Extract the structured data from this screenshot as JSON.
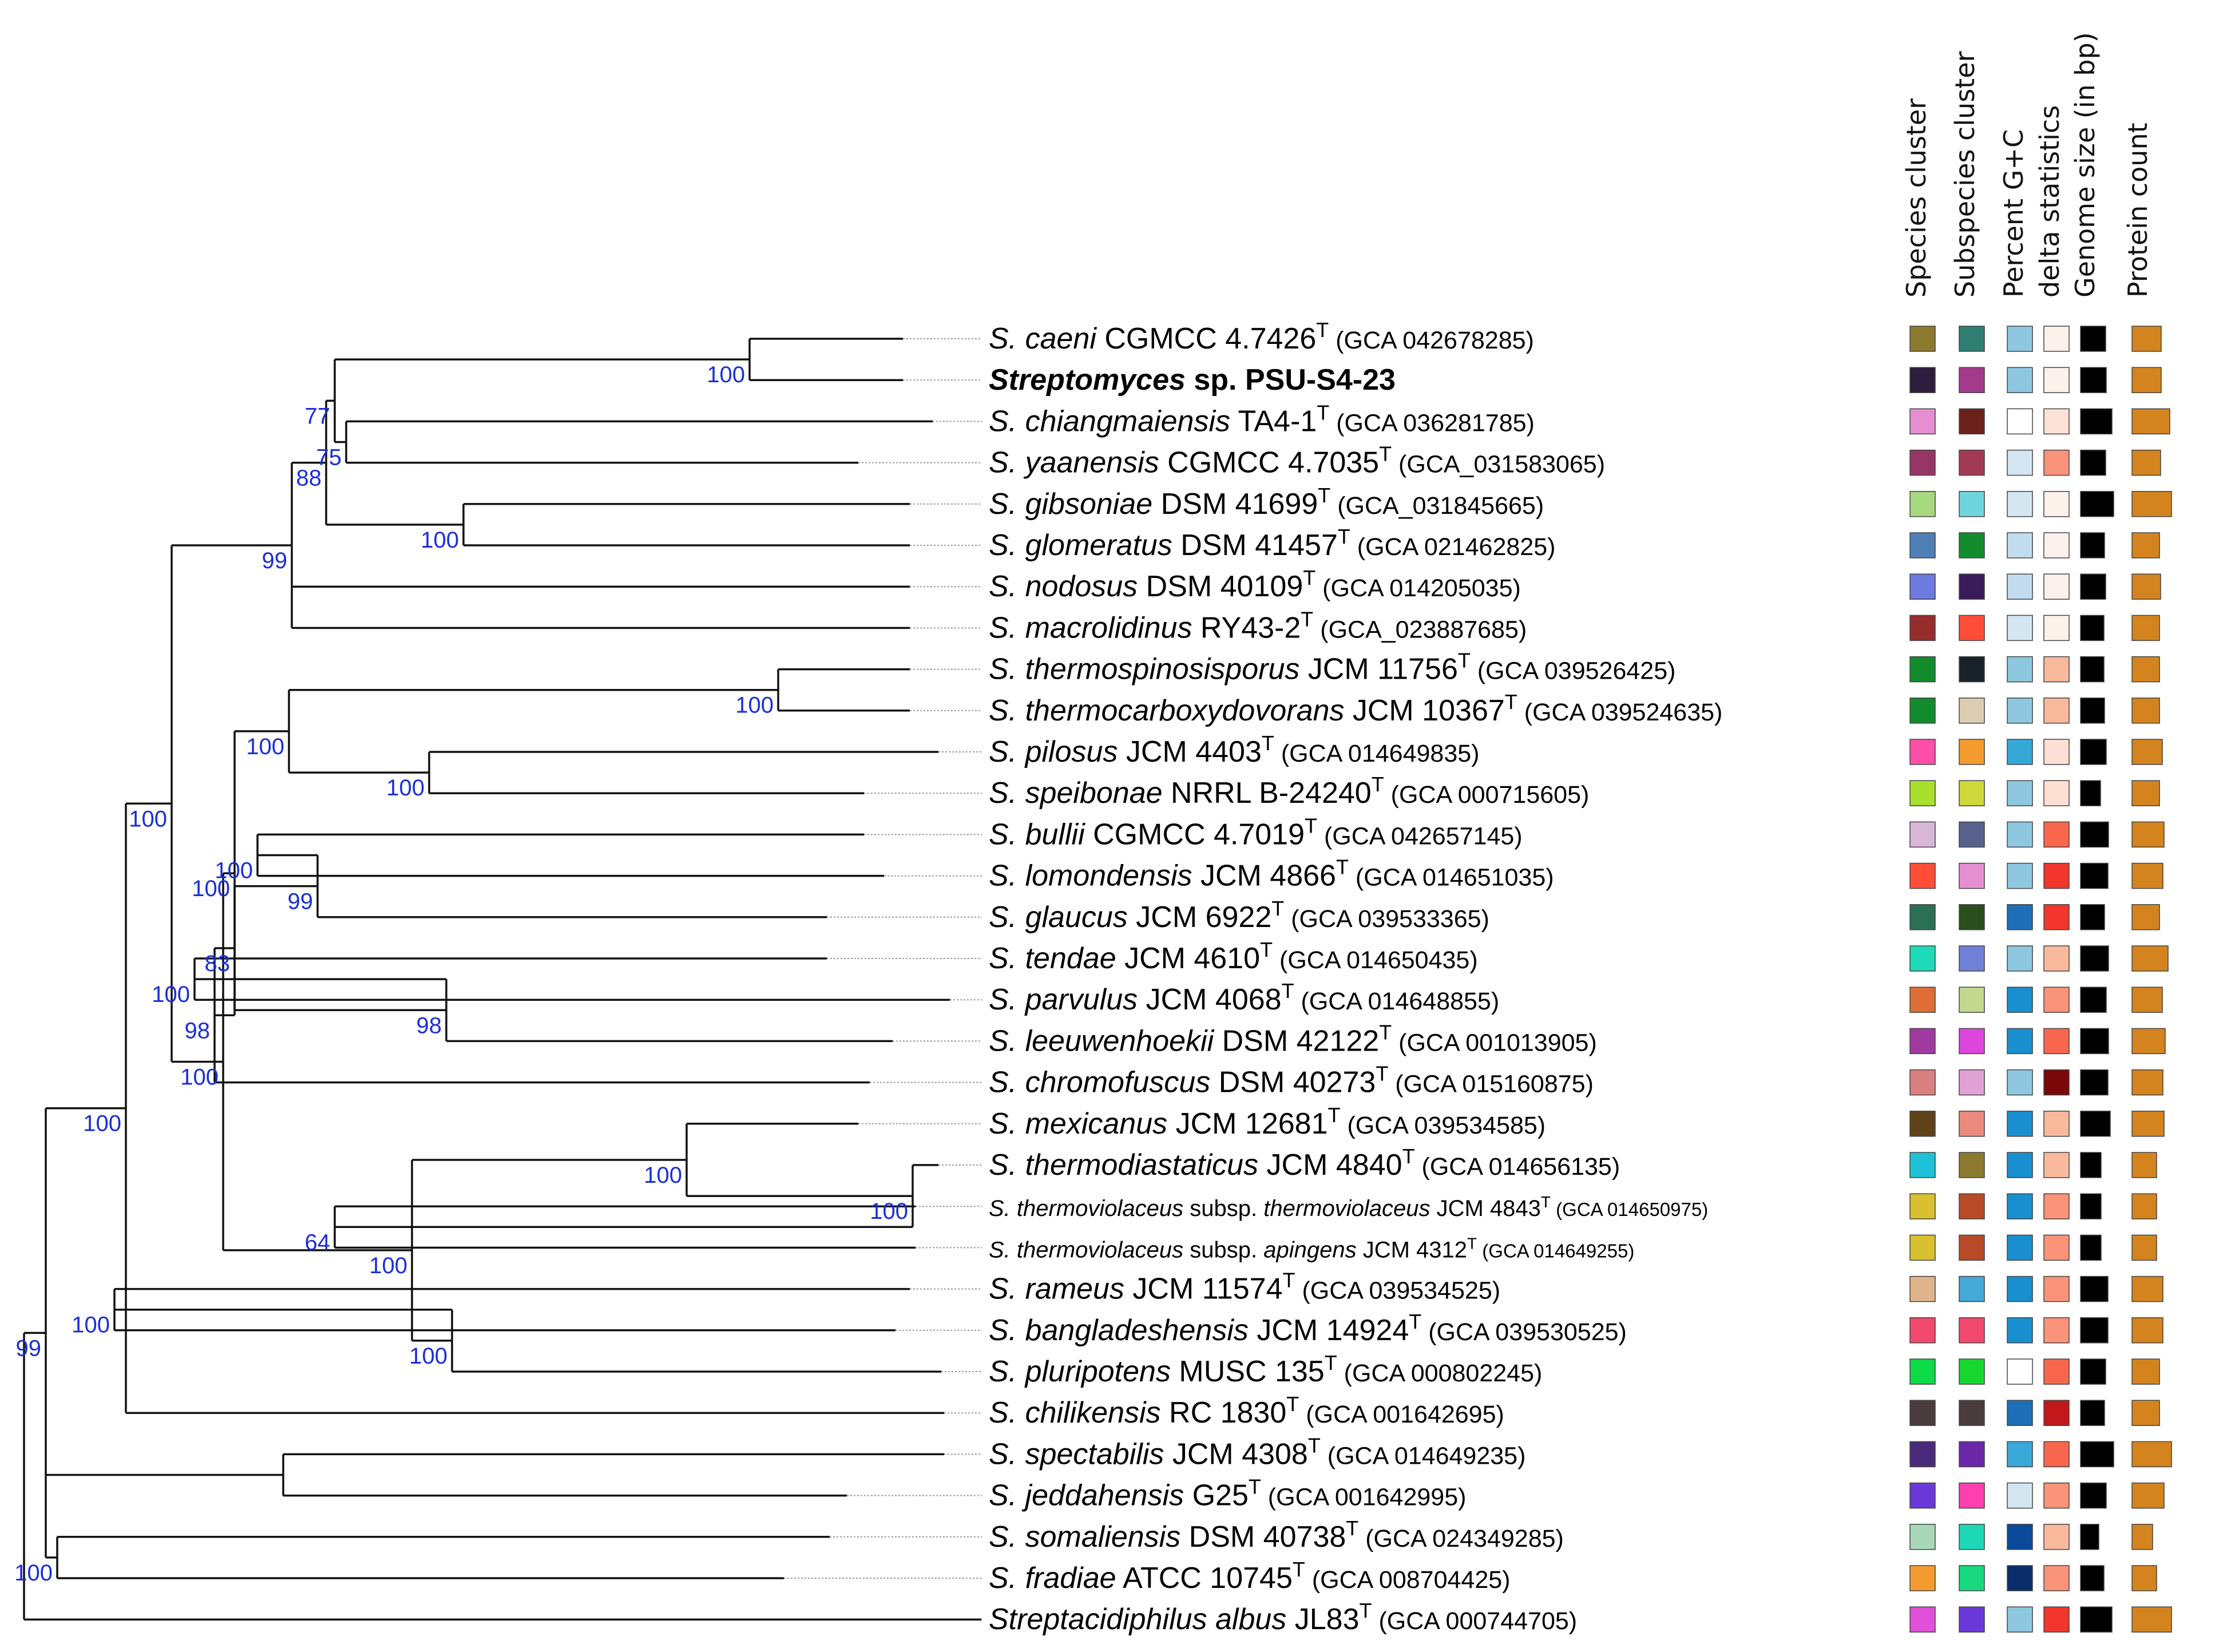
{
  "columns": [
    "Species cluster",
    "Subspecies cluster",
    "Percent G+C",
    "delta statistics",
    "Genome size (in bp)",
    "Protein count"
  ],
  "taxa": [
    {
      "genus": "S.",
      "species": "caeni",
      "strain": "CGMCC 4.7426",
      "type": "T",
      "acc": "(GCA 042678285)",
      "colors": [
        "#8b7a2e",
        "#2e7f72",
        "#8ec8e0",
        "#fdf1ec",
        "#000000",
        "#d4841f"
      ],
      "genome": 0.75,
      "proteins": 0.78
    },
    {
      "genus": "Streptomyces",
      "species": "sp. PSU-S4-23",
      "strain": "",
      "type": "",
      "acc": "",
      "bold": true,
      "colors": [
        "#2e1d3d",
        "#a33a8c",
        "#8ec8e0",
        "#fdf1ec",
        "#000000",
        "#d4841f"
      ],
      "genome": 0.78,
      "proteins": 0.78
    },
    {
      "genus": "S.",
      "species": "chiangmaiensis",
      "strain": "TA4-1",
      "type": "T",
      "acc": "(GCA 036281785)",
      "colors": [
        "#e58fd2",
        "#6b2119",
        "#ffffff",
        "#fde2d7",
        "#000000",
        "#d4841f"
      ],
      "genome": 0.95,
      "proteins": 1.0
    },
    {
      "genus": "S.",
      "species": "yaanensis",
      "strain": "CGMCC 4.7035",
      "type": "T",
      "acc": "(GCA_031583065)",
      "colors": [
        "#963566",
        "#a33a55",
        "#d3e6f2",
        "#f99379",
        "#000000",
        "#d4841f"
      ],
      "genome": 0.75,
      "proteins": 0.75
    },
    {
      "genus": "S.",
      "species": "gibsoniae",
      "strain": "DSM 41699",
      "type": "T",
      "acc": "(GCA_031845665)",
      "colors": [
        "#a8d97e",
        "#70d4dc",
        "#d3e6f2",
        "#fdf1ec",
        "#000000",
        "#d4841f"
      ],
      "genome": 1.0,
      "proteins": 1.05
    },
    {
      "genus": "S.",
      "species": "glomeratus",
      "strain": "DSM 41457",
      "type": "T",
      "acc": "(GCA 021462825)",
      "colors": [
        "#4f7fb5",
        "#148c2e",
        "#c2dcef",
        "#fdf1ec",
        "#000000",
        "#d4841f"
      ],
      "genome": 0.72,
      "proteins": 0.72
    },
    {
      "genus": "S.",
      "species": "nodosus",
      "strain": "DSM 40109",
      "type": "T",
      "acc": "(GCA 014205035)",
      "colors": [
        "#6d7ae0",
        "#3a1a5a",
        "#c2dcef",
        "#fdf1ec",
        "#000000",
        "#d4841f"
      ],
      "genome": 0.75,
      "proteins": 0.75
    },
    {
      "genus": "S.",
      "species": "macrolidinus",
      "strain": "RY43-2",
      "type": "T",
      "acc": "(GCA_023887685)",
      "colors": [
        "#962c2c",
        "#ff4d38",
        "#d3e6f2",
        "#fdf1ec",
        "#000000",
        "#d4841f"
      ],
      "genome": 0.7,
      "proteins": 0.72
    },
    {
      "genus": "S.",
      "species": "thermospinosisporus",
      "strain": "JCM 11756",
      "type": "T",
      "acc": "(GCA 039526425)",
      "colors": [
        "#138c2e",
        "#19222b",
        "#8ec8e0",
        "#f9b99c",
        "#000000",
        "#d4841f"
      ],
      "genome": 0.7,
      "proteins": 0.72
    },
    {
      "genus": "S.",
      "species": "thermocarboxydovorans",
      "strain": "JCM 10367",
      "type": "T",
      "acc": "(GCA 039524635)",
      "colors": [
        "#138c2e",
        "#dccdb2",
        "#8ec8e0",
        "#f9b99c",
        "#000000",
        "#d4841f"
      ],
      "genome": 0.72,
      "proteins": 0.72
    },
    {
      "genus": "S.",
      "species": "pilosus",
      "strain": "JCM 4403",
      "type": "T",
      "acc": "(GCA 014649835)",
      "colors": [
        "#ff4fa8",
        "#f39b2e",
        "#35a8d8",
        "#fddfd3",
        "#000000",
        "#d4841f"
      ],
      "genome": 0.78,
      "proteins": 0.8
    },
    {
      "genus": "S.",
      "species": "speibonae",
      "strain": "NRRL B-24240",
      "type": "T",
      "acc": "(GCA 000715605)",
      "colors": [
        "#a9e02e",
        "#cfd83a",
        "#8ec8e0",
        "#fddfd3",
        "#000000",
        "#d4841f"
      ],
      "genome": 0.6,
      "proteins": 0.72
    },
    {
      "genus": "S.",
      "species": "bullii",
      "strain": "CGMCC 4.7019",
      "type": "T",
      "acc": "(GCA 042657145)",
      "colors": [
        "#d8b7d8",
        "#58608c",
        "#8ec8e0",
        "#f9664e",
        "#000000",
        "#d4841f"
      ],
      "genome": 0.85,
      "proteins": 0.85
    },
    {
      "genus": "S.",
      "species": "lomondensis",
      "strain": "JCM 4866",
      "type": "T",
      "acc": "(GCA 014651035)",
      "colors": [
        "#ff4d38",
        "#e58fd2",
        "#8ec8e0",
        "#f2362d",
        "#000000",
        "#d4841f"
      ],
      "genome": 0.82,
      "proteins": 0.82
    },
    {
      "genus": "S.",
      "species": "glaucus",
      "strain": "JCM 6922",
      "type": "T",
      "acc": "(GCA 039533365)",
      "colors": [
        "#2b6f55",
        "#2a4e1c",
        "#1e6eb8",
        "#f2362d",
        "#000000",
        "#d4841f"
      ],
      "genome": 0.72,
      "proteins": 0.72
    },
    {
      "genus": "S.",
      "species": "tendae",
      "strain": "JCM 4610",
      "type": "T",
      "acc": "(GCA 014650435)",
      "colors": [
        "#1ddbb8",
        "#6f80d9",
        "#8ec8e0",
        "#f9b99c",
        "#000000",
        "#d4841f"
      ],
      "genome": 0.85,
      "proteins": 0.95
    },
    {
      "genus": "S.",
      "species": "parvulus",
      "strain": "JCM 4068",
      "type": "T",
      "acc": "(GCA 014648855)",
      "colors": [
        "#dd6f36",
        "#c2d98e",
        "#1a8fd0",
        "#f99379",
        "#000000",
        "#d4841f"
      ],
      "genome": 0.78,
      "proteins": 0.8
    },
    {
      "genus": "S.",
      "species": "leeuwenhoekii",
      "strain": "DSM 42122",
      "type": "T",
      "acc": "(GCA 001013905)",
      "colors": [
        "#a03aa0",
        "#dd45dd",
        "#1a8fd0",
        "#f9664e",
        "#000000",
        "#d4841f"
      ],
      "genome": 0.85,
      "proteins": 0.88
    },
    {
      "genus": "S.",
      "species": "chromofuscus",
      "strain": "DSM 40273",
      "type": "T",
      "acc": "(GCA 015160875)",
      "colors": [
        "#d98080",
        "#e0a2d4",
        "#8ec8e0",
        "#7a0808",
        "#000000",
        "#d4841f"
      ],
      "genome": 0.82,
      "proteins": 0.82
    },
    {
      "genus": "S.",
      "species": "mexicanus",
      "strain": "JCM 12681",
      "type": "T",
      "acc": "(GCA 039534585)",
      "colors": [
        "#5e4218",
        "#ec8a7e",
        "#1a8fd0",
        "#f9b99c",
        "#000000",
        "#d4841f"
      ],
      "genome": 0.9,
      "proteins": 0.85
    },
    {
      "genus": "S.",
      "species": "thermodiastaticus",
      "strain": "JCM 4840",
      "type": "T",
      "acc": "(GCA 014656135)",
      "colors": [
        "#1ec2d6",
        "#8b7a2e",
        "#1a8fd0",
        "#f9b99c",
        "#000000",
        "#d4841f"
      ],
      "genome": 0.62,
      "proteins": 0.65
    },
    {
      "genus": "S.",
      "species": "thermoviolaceus",
      "subsp": "thermoviolaceus",
      "strain": "JCM 4843",
      "type": "T",
      "acc": "(GCA 014650975)",
      "small": true,
      "colors": [
        "#d8c030",
        "#b84a28",
        "#1a8fd0",
        "#f99379",
        "#000000",
        "#d4841f"
      ],
      "genome": 0.62,
      "proteins": 0.65
    },
    {
      "genus": "S.",
      "species": "thermoviolaceus",
      "subsp": "apingens",
      "strain": "JCM 4312",
      "type": "T",
      "acc": "(GCA 014649255)",
      "small": true,
      "colors": [
        "#d8c030",
        "#b84a28",
        "#1a8fd0",
        "#f99379",
        "#000000",
        "#d4841f"
      ],
      "genome": 0.62,
      "proteins": 0.65
    },
    {
      "genus": "S.",
      "species": "rameus",
      "strain": "JCM 11574",
      "type": "T",
      "acc": "(GCA 039534525)",
      "colors": [
        "#e0b48a",
        "#45a8d8",
        "#1a8fd0",
        "#f99379",
        "#000000",
        "#d4841f"
      ],
      "genome": 0.82,
      "proteins": 0.82
    },
    {
      "genus": "S.",
      "species": "bangladeshensis",
      "strain": "JCM 14924",
      "type": "T",
      "acc": "(GCA 039530525)",
      "colors": [
        "#f24a6c",
        "#f24a6c",
        "#1a8fd0",
        "#f99379",
        "#000000",
        "#d4841f"
      ],
      "genome": 0.82,
      "proteins": 0.82
    },
    {
      "genus": "S.",
      "species": "pluripotens",
      "strain": "MUSC 135",
      "type": "T",
      "acc": "(GCA 000802245)",
      "colors": [
        "#0edb48",
        "#18d830",
        "#ffffff",
        "#f9664e",
        "#000000",
        "#d4841f"
      ],
      "genome": 0.75,
      "proteins": 0.72
    },
    {
      "genus": "S.",
      "species": "chilikensis",
      "strain": "RC 1830",
      "type": "T",
      "acc": "(GCA 001642695)",
      "colors": [
        "#4a3c3c",
        "#4a3c3c",
        "#1e6eb8",
        "#c2171b",
        "#000000",
        "#d4841f"
      ],
      "genome": 0.72,
      "proteins": 0.72
    },
    {
      "genus": "S.",
      "species": "spectabilis",
      "strain": "JCM 4308",
      "type": "T",
      "acc": "(GCA 014649235)",
      "colors": [
        "#4a2a7a",
        "#6a28a8",
        "#3aa8d8",
        "#f9664e",
        "#000000",
        "#d4841f"
      ],
      "genome": 1.0,
      "proteins": 1.05
    },
    {
      "genus": "S.",
      "species": "jeddahensis",
      "strain": "G25",
      "type": "T",
      "acc": "(GCA 001642995)",
      "colors": [
        "#6a38d8",
        "#ff3fb0",
        "#d3e6f2",
        "#f99379",
        "#000000",
        "#d4841f"
      ],
      "genome": 0.78,
      "proteins": 0.85
    },
    {
      "genus": "S.",
      "species": "somaliensis",
      "strain": "DSM 40738",
      "type": "T",
      "acc": "(GCA 024349285)",
      "colors": [
        "#a8d8b8",
        "#1ed8b8",
        "#0a4a9a",
        "#f9b99c",
        "#000000",
        "#d4841f"
      ],
      "genome": 0.55,
      "proteins": 0.55
    },
    {
      "genus": "S.",
      "species": "fradiae",
      "strain": "ATCC 10745",
      "type": "T",
      "acc": "(GCA 008704425)",
      "colors": [
        "#f39b2e",
        "#18d880",
        "#0a2e6a",
        "#f99379",
        "#000000",
        "#d4841f"
      ],
      "genome": 0.7,
      "proteins": 0.65
    },
    {
      "genus": "Streptacidiphilus",
      "species": "albus",
      "strain": "JL83",
      "type": "T",
      "acc": "(GCA 000744705)",
      "colors": [
        "#e050d8",
        "#6a38d8",
        "#8ec8e0",
        "#f2362d",
        "#000000",
        "#d4841f"
      ],
      "genome": 0.95,
      "proteins": 1.05
    }
  ],
  "tree": {
    "label": "99",
    "children": [
      {
        "label": "100",
        "children": [
          {
            "label": "100",
            "children": [
              {
                "label": "99",
                "children": [
                  {
                    "label": "88",
                    "children": [
                      {
                        "label": "77",
                        "children": [
                          {
                            "label": "100",
                            "children": [
                              {
                                "leaf": 0
                              },
                              {
                                "leaf": 1
                              }
                            ]
                          },
                          {
                            "label": "75",
                            "children": [
                              {
                                "leaf": 2
                              },
                              {
                                "leaf": 3
                              }
                            ]
                          }
                        ]
                      },
                      {
                        "label": "100",
                        "children": [
                          {
                            "leaf": 4
                          },
                          {
                            "leaf": 5
                          }
                        ]
                      }
                    ]
                  },
                  {
                    "leaf": 6
                  },
                  {
                    "leaf": 7
                  }
                ]
              },
              {
                "label": "100",
                "children": [
                  {
                    "label": "100",
                    "children": [
                      {
                        "label": "100",
                        "children": [
                          {
                            "label": "100",
                            "children": [
                              {
                                "leaf": 8
                              },
                              {
                                "leaf": 9
                              }
                            ]
                          },
                          {
                            "label": "100",
                            "children": [
                              {
                                "leaf": 10
                              },
                              {
                                "leaf": 11
                              }
                            ]
                          }
                        ]
                      },
                      {
                        "label": "98",
                        "children": [
                          {
                            "label": "83",
                            "children": [
                              {
                                "label": "99",
                                "children": [
                                  {
                                    "label": "100",
                                    "children": [
                                      {
                                        "leaf": 12
                                      },
                                      {
                                        "leaf": 13
                                      }
                                    ]
                                  },
                                  {
                                    "leaf": 14
                                  }
                                ]
                              },
                              {
                                "label": "98",
                                "children": [
                                  {
                                    "label": "100",
                                    "children": [
                                      {
                                        "leaf": 15
                                      },
                                      {
                                        "leaf": 16
                                      }
                                    ]
                                  },
                                  {
                                    "leaf": 17
                                  }
                                ]
                              }
                            ]
                          },
                          {
                            "leaf": 18
                          }
                        ]
                      }
                    ]
                  },
                  {
                    "label": "100",
                    "children": [
                      {
                        "label": "100",
                        "children": [
                          {
                            "leaf": 19
                          },
                          {
                            "label": "100",
                            "children": [
                              {
                                "leaf": 20
                              },
                              {
                                "label": "64",
                                "children": [
                                  {
                                    "leaf": 21
                                  },
                                  {
                                    "leaf": 22
                                  }
                                ]
                              }
                            ]
                          }
                        ]
                      },
                      {
                        "label": "100",
                        "children": [
                          {
                            "label": "100",
                            "children": [
                              {
                                "leaf": 23
                              },
                              {
                                "leaf": 24
                              }
                            ]
                          },
                          {
                            "leaf": 25
                          }
                        ]
                      }
                    ]
                  }
                ]
              }
            ]
          },
          {
            "leaf": 26
          }
        ]
      },
      {
        "label": "",
        "children": [
          {
            "leaf": 27
          },
          {
            "leaf": 28
          }
        ]
      },
      {
        "label": "100",
        "children": [
          {
            "leaf": 29
          },
          {
            "leaf": 30
          }
        ]
      }
    ]
  },
  "outgroup": 31
}
